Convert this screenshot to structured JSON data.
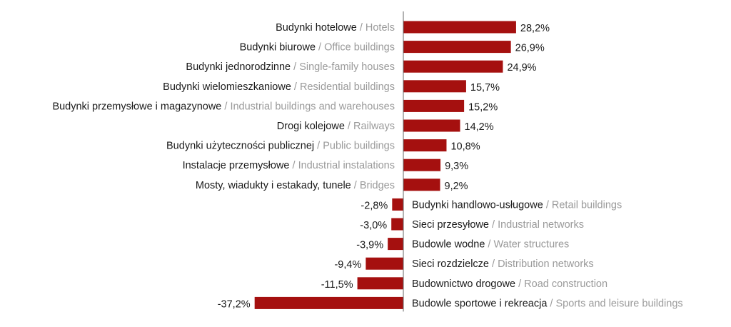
{
  "chart_data": {
    "type": "bar",
    "orientation": "horizontal",
    "bar_color": "#a5100f",
    "axis_color": "#666666",
    "value_format": "decimal-comma-percent",
    "title": "",
    "xlabel": "",
    "ylabel": "",
    "categories": [
      {
        "pl": "Budynki hotelowe",
        "en": "Hotels",
        "value": 28.2,
        "label": "28,2%"
      },
      {
        "pl": "Budynki biurowe",
        "en": "Office buildings",
        "value": 26.9,
        "label": "26,9%"
      },
      {
        "pl": "Budynki jednorodzinne",
        "en": "Single-family houses",
        "value": 24.9,
        "label": "24,9%"
      },
      {
        "pl": "Budynki wielomieszkaniowe",
        "en": "Residential buildings",
        "value": 15.7,
        "label": "15,7%"
      },
      {
        "pl": "Budynki przemysłowe i magazynowe",
        "en": "Industrial buildings and warehouses",
        "value": 15.2,
        "label": "15,2%"
      },
      {
        "pl": "Drogi kolejowe",
        "en": "Railways",
        "value": 14.2,
        "label": "14,2%"
      },
      {
        "pl": "Budynki użyteczności publicznej",
        "en": "Public buildings",
        "value": 10.8,
        "label": "10,8%"
      },
      {
        "pl": "Instalacje przemysłowe",
        "en": "Industrial instalations",
        "value": 9.3,
        "label": "9,3%"
      },
      {
        "pl": "Mosty, wiadukty i estakady, tunele",
        "en": "Bridges",
        "value": 9.2,
        "label": "9,2%"
      },
      {
        "pl": "Budynki handlowo-usługowe",
        "en": "Retail buildings",
        "value": -2.8,
        "label": "-2,8%"
      },
      {
        "pl": "Sieci przesyłowe",
        "en": "Industrial networks",
        "value": -3.0,
        "label": "-3,0%"
      },
      {
        "pl": "Budowle wodne",
        "en": "Water structures",
        "value": -3.9,
        "label": "-3,9%"
      },
      {
        "pl": "Sieci rozdzielcze",
        "en": "Distribution networks",
        "value": -9.4,
        "label": "-9,4%"
      },
      {
        "pl": "Budownictwo drogowe",
        "en": "Road construction",
        "value": -11.5,
        "label": "-11,5%"
      },
      {
        "pl": "Budowle sportowe i rekreacja",
        "en": "Sports and leisure buildings",
        "value": -37.2,
        "label": "-37,2%"
      }
    ]
  }
}
